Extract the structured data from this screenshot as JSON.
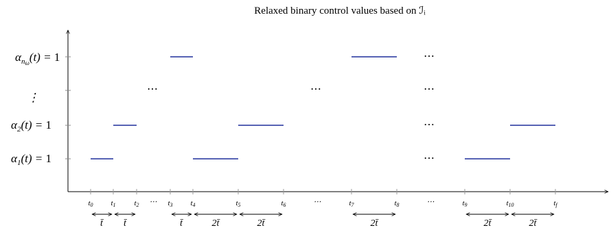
{
  "title": "Relaxed binary control values based on ℐᵢ",
  "y_labels": {
    "n_omega": "αnω(t) = 1",
    "vdots": "⋮",
    "two": "α2(t) = 1",
    "one": "α1(t) = 1"
  },
  "tick_labels": [
    "t0",
    "t1",
    "t2",
    "⋯",
    "t3",
    "t4",
    "t5",
    "t6",
    "⋯",
    "t7",
    "t8",
    "⋯",
    "t9",
    "t10",
    "tf"
  ],
  "ellipsis": "⋯",
  "durations": [
    "t̄",
    "t̄",
    "t̄",
    "2t̄",
    "2t̄",
    "2t̄",
    "2t̄",
    "2t̄"
  ],
  "colors": {
    "segment": "#1f2f9c",
    "axis": "#000000",
    "tickline": "#999999"
  }
}
